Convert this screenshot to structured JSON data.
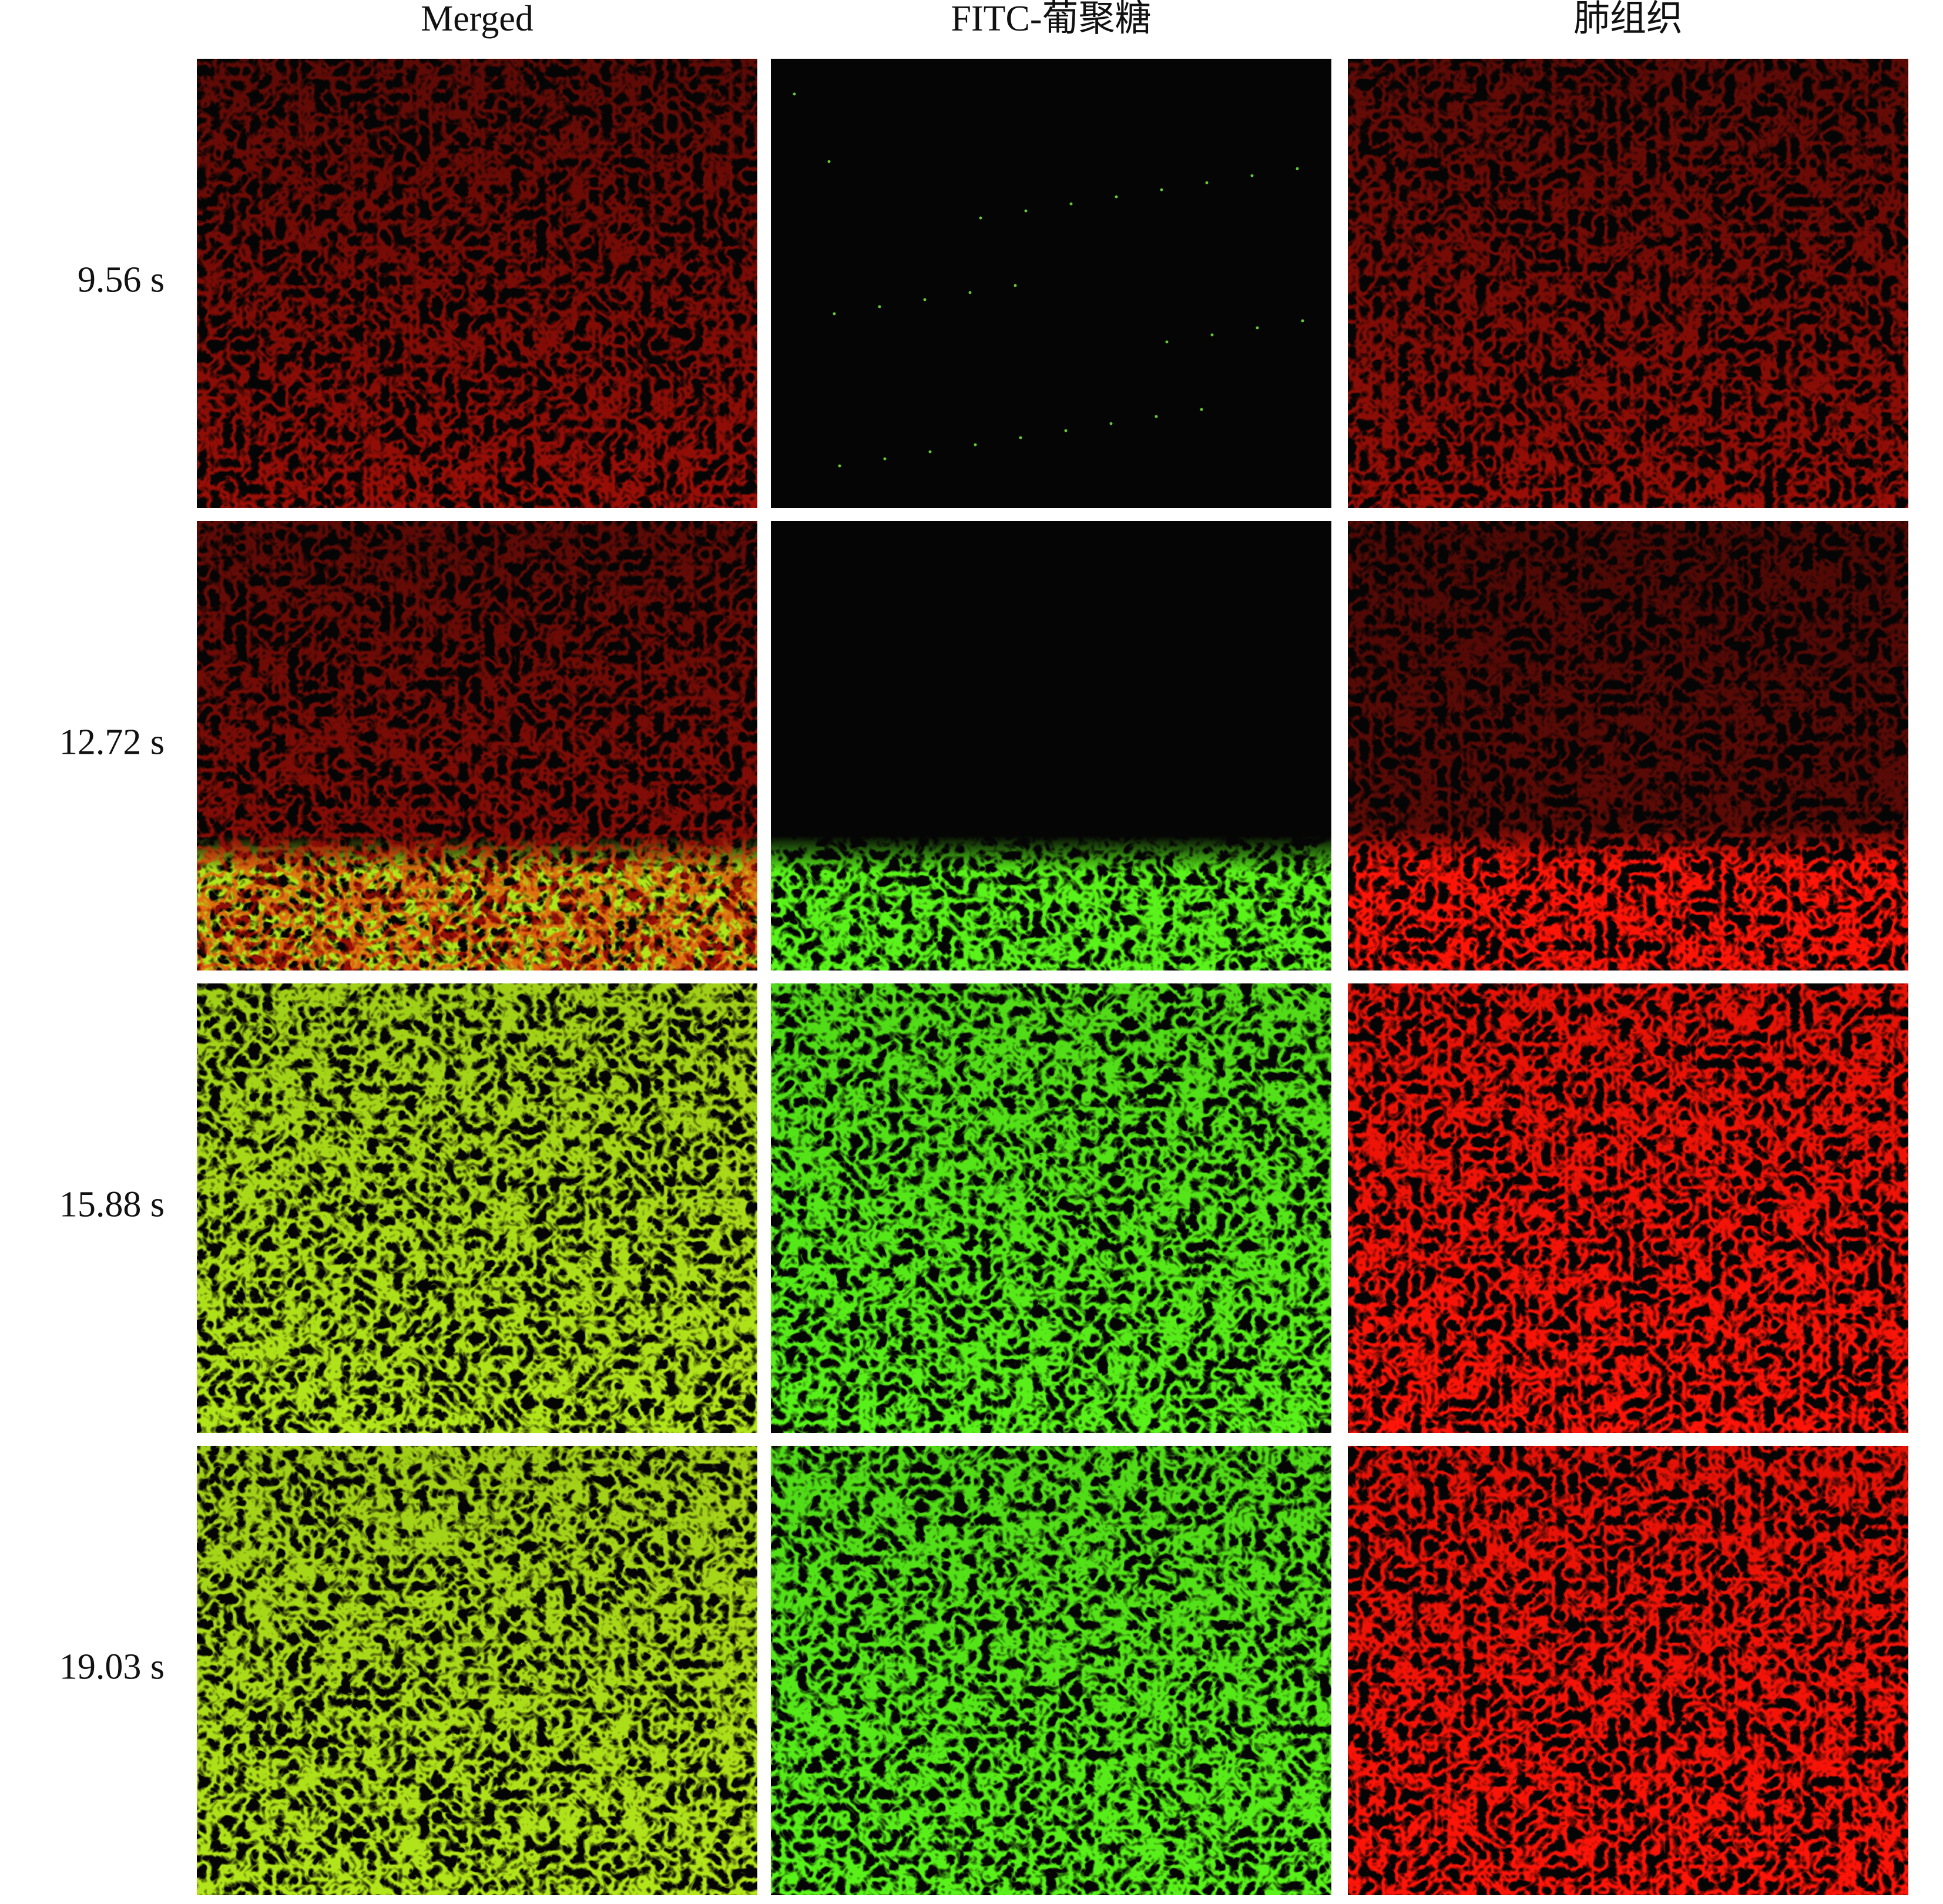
{
  "columns": [
    "Merged",
    "FITC-葡聚糖",
    "肺组织"
  ],
  "rows": [
    "9.56 s",
    "12.72 s",
    "15.88 s",
    "19.03 s"
  ]
}
